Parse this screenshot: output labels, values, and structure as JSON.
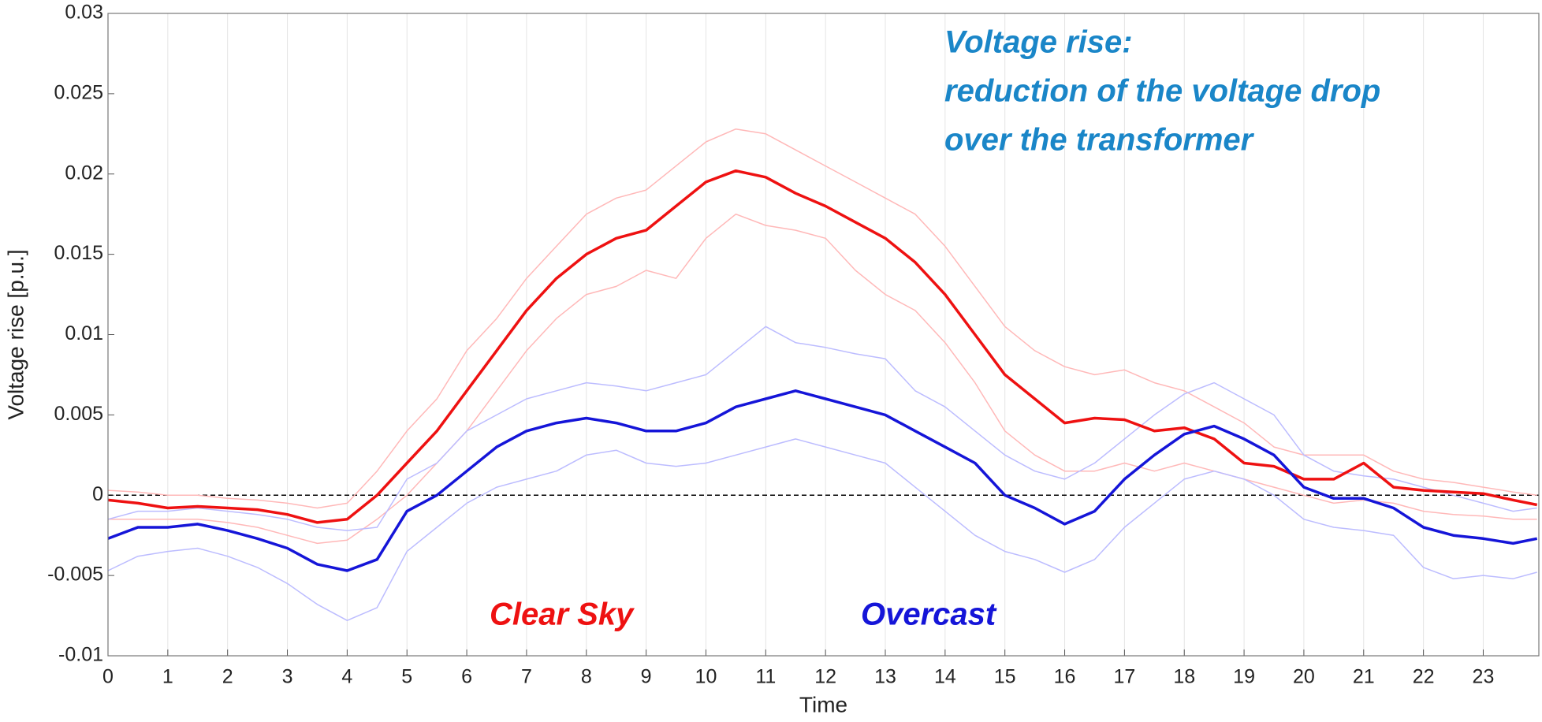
{
  "chart_data": {
    "type": "line",
    "y_label": "Voltage rise [p.u.]",
    "x_label": "Time",
    "annotation": {
      "lines": [
        "Voltage rise:",
        "reduction of the voltage drop",
        "over the transformer"
      ],
      "color": "#1a86c8"
    },
    "xlim": [
      0,
      23.93
    ],
    "xticks": [
      0,
      1,
      2,
      3,
      4,
      5,
      6,
      7,
      8,
      9,
      10,
      11,
      12,
      13,
      14,
      15,
      16,
      17,
      18,
      19,
      20,
      21,
      22,
      23
    ],
    "ylim": [
      -0.01,
      0.03
    ],
    "yticks": [
      -0.01,
      -0.005,
      0,
      0.005,
      0.01,
      0.015,
      0.02,
      0.025,
      0.03
    ],
    "grid": "x",
    "hline": 0,
    "x": [
      0,
      0.5,
      1,
      1.5,
      2,
      2.5,
      3,
      3.5,
      4,
      4.5,
      5,
      5.5,
      6,
      6.5,
      7,
      7.5,
      8,
      8.5,
      9,
      9.5,
      10,
      10.5,
      11,
      11.5,
      12,
      12.5,
      13,
      13.5,
      14,
      14.5,
      15,
      15.5,
      16,
      16.5,
      17,
      17.5,
      18,
      18.5,
      19,
      19.5,
      20,
      20.5,
      21,
      21.5,
      22,
      22.5,
      23,
      23.5,
      23.9
    ],
    "series": [
      {
        "color": "#ffb8b8",
        "values": [
          0.0003,
          0.0002,
          0,
          0,
          -0.0002,
          -0.0003,
          -0.0005,
          -0.0008,
          -0.0005,
          0.0015,
          0.004,
          0.006,
          0.009,
          0.011,
          0.0135,
          0.0155,
          0.0175,
          0.0185,
          0.019,
          0.0205,
          0.022,
          0.0228,
          0.0225,
          0.0215,
          0.0205,
          0.0195,
          0.0185,
          0.0175,
          0.0155,
          0.013,
          0.0105,
          0.009,
          0.008,
          0.0075,
          0.0078,
          0.007,
          0.0065,
          0.0055,
          0.0045,
          0.003,
          0.0025,
          0.0025,
          0.0025,
          0.0015,
          0.001,
          0.0008,
          0.0005,
          0.0002,
          0
        ]
      },
      {
        "color": "#ffb8b8",
        "values": [
          -0.0015,
          -0.0015,
          -0.0015,
          -0.0015,
          -0.0017,
          -0.002,
          -0.0025,
          -0.003,
          -0.0028,
          -0.0015,
          0,
          0.002,
          0.004,
          0.0065,
          0.009,
          0.011,
          0.0125,
          0.013,
          0.014,
          0.0135,
          0.016,
          0.0175,
          0.0168,
          0.0165,
          0.016,
          0.014,
          0.0125,
          0.0115,
          0.0095,
          0.007,
          0.004,
          0.0025,
          0.0015,
          0.0015,
          0.002,
          0.0015,
          0.002,
          0.0015,
          0.001,
          0.0005,
          0,
          -0.0005,
          -0.0003,
          -0.0005,
          -0.001,
          -0.0012,
          -0.0013,
          -0.0015,
          -0.0015
        ]
      },
      {
        "color": "#bcbcff",
        "values": [
          -0.0015,
          -0.001,
          -0.001,
          -0.0008,
          -0.001,
          -0.0012,
          -0.0015,
          -0.002,
          -0.0022,
          -0.002,
          0.001,
          0.002,
          0.004,
          0.005,
          0.006,
          0.0065,
          0.007,
          0.0068,
          0.0065,
          0.007,
          0.0075,
          0.009,
          0.0105,
          0.0095,
          0.0092,
          0.0088,
          0.0085,
          0.0065,
          0.0055,
          0.004,
          0.0025,
          0.0015,
          0.001,
          0.002,
          0.0035,
          0.005,
          0.0063,
          0.007,
          0.006,
          0.005,
          0.0025,
          0.0015,
          0.0012,
          0.001,
          0.0005,
          0,
          -0.0005,
          -0.001,
          -0.0008
        ]
      },
      {
        "color": "#bcbcff",
        "values": [
          -0.0047,
          -0.0038,
          -0.0035,
          -0.0033,
          -0.0038,
          -0.0045,
          -0.0055,
          -0.0068,
          -0.0078,
          -0.007,
          -0.0035,
          -0.002,
          -0.0005,
          0.0005,
          0.001,
          0.0015,
          0.0025,
          0.0028,
          0.002,
          0.0018,
          0.002,
          0.0025,
          0.003,
          0.0035,
          0.003,
          0.0025,
          0.002,
          0.0005,
          -0.001,
          -0.0025,
          -0.0035,
          -0.004,
          -0.0048,
          -0.004,
          -0.002,
          -0.0005,
          0.001,
          0.0015,
          0.001,
          0,
          -0.0015,
          -0.002,
          -0.0022,
          -0.0025,
          -0.0045,
          -0.0052,
          -0.005,
          -0.0052,
          -0.0048
        ]
      },
      {
        "name": "Clear Sky",
        "color": "#ee1111",
        "values": [
          -0.0003,
          -0.0005,
          -0.0008,
          -0.0007,
          -0.0008,
          -0.0009,
          -0.0012,
          -0.0017,
          -0.0015,
          0,
          0.002,
          0.004,
          0.0065,
          0.009,
          0.0115,
          0.0135,
          0.015,
          0.016,
          0.0165,
          0.018,
          0.0195,
          0.0202,
          0.0198,
          0.0188,
          0.018,
          0.017,
          0.016,
          0.0145,
          0.0125,
          0.01,
          0.0075,
          0.006,
          0.0045,
          0.0048,
          0.0047,
          0.004,
          0.0042,
          0.0035,
          0.002,
          0.0018,
          0.001,
          0.001,
          0.002,
          0.0005,
          0.0003,
          0.0002,
          0.0001,
          -0.0003,
          -0.0006
        ]
      },
      {
        "name": "Overcast",
        "color": "#1515d8",
        "values": [
          -0.0027,
          -0.002,
          -0.002,
          -0.0018,
          -0.0022,
          -0.0027,
          -0.0033,
          -0.0043,
          -0.0047,
          -0.004,
          -0.001,
          0,
          0.0015,
          0.003,
          0.004,
          0.0045,
          0.0048,
          0.0045,
          0.004,
          0.004,
          0.0045,
          0.0055,
          0.006,
          0.0065,
          0.006,
          0.0055,
          0.005,
          0.004,
          0.003,
          0.002,
          0,
          -0.0008,
          -0.0018,
          -0.001,
          0.001,
          0.0025,
          0.0038,
          0.0043,
          0.0035,
          0.0025,
          0.0005,
          -0.0002,
          -0.0002,
          -0.0008,
          -0.002,
          -0.0025,
          -0.0027,
          -0.003,
          -0.0027
        ]
      }
    ]
  }
}
